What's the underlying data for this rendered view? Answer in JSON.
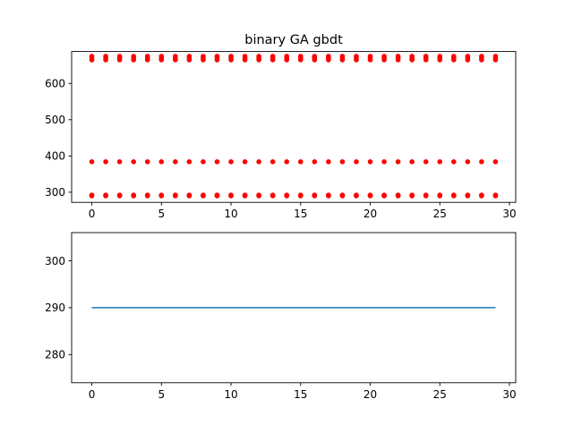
{
  "chart_data": [
    {
      "type": "scatter",
      "title": "binary GA gbdt",
      "xlabel": "",
      "ylabel": "",
      "xlim": [
        -1.45,
        30.45
      ],
      "ylim": [
        272,
        688
      ],
      "xticks": [
        0,
        5,
        10,
        15,
        20,
        25,
        30
      ],
      "yticks": [
        300,
        400,
        500,
        600
      ],
      "grid": false,
      "marker_color": "#ff0000",
      "x_range": [
        0,
        29
      ],
      "y_levels": [
        290,
        291,
        292,
        384,
        665,
        670,
        675
      ]
    },
    {
      "type": "line",
      "title": "",
      "xlabel": "",
      "ylabel": "",
      "xlim": [
        -1.45,
        30.45
      ],
      "ylim": [
        274,
        306
      ],
      "xticks": [
        0,
        5,
        10,
        15,
        20,
        25,
        30
      ],
      "yticks": [
        280,
        290,
        300
      ],
      "grid": false,
      "line_color": "#1f77b4",
      "x_range": [
        0,
        29
      ],
      "y_value": 290
    }
  ]
}
